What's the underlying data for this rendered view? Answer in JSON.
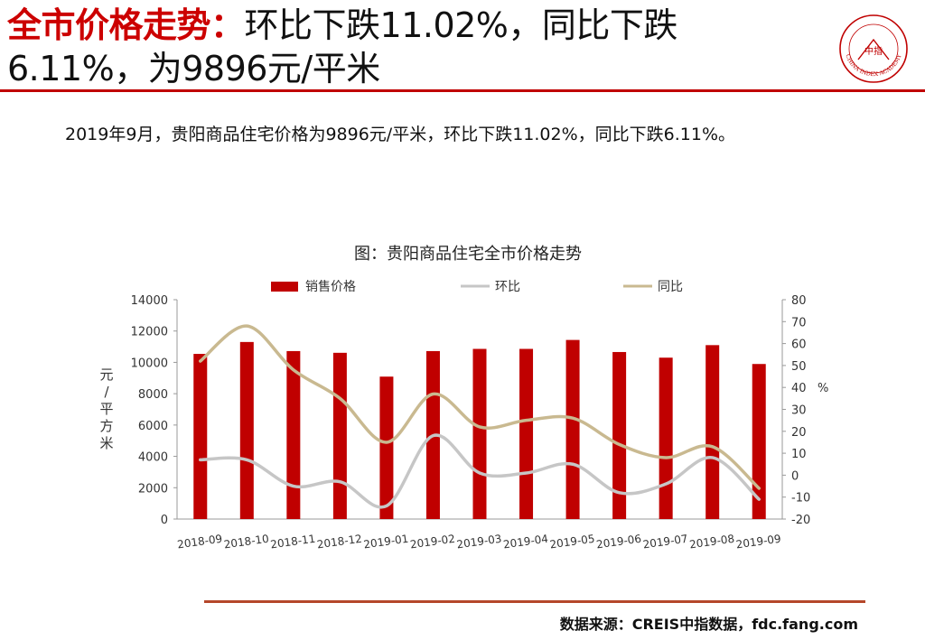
{
  "header": {
    "title_highlight": "全市价格走势：",
    "title_line1_rest": "环比下跌11.02%，同比下跌",
    "title_line2": "6.11%，为9896元/平米"
  },
  "logo": {
    "name": "CHINA INDEX ACADEMY",
    "center_text": "中指",
    "color": "#c00000"
  },
  "summary": "2019年9月，贵阳商品住宅价格为9896元/平米，环比下跌11.02%，同比下跌6.11%。",
  "chart_data": {
    "type": "bar",
    "title": "图：贵阳商品住宅全市价格走势",
    "categories": [
      "2018-09",
      "2018-10",
      "2018-11",
      "2018-12",
      "2019-01",
      "2019-02",
      "2019-03",
      "2019-04",
      "2019-05",
      "2019-06",
      "2019-07",
      "2019-08",
      "2019-09"
    ],
    "series": [
      {
        "name": "销售价格",
        "type": "bar",
        "axis": "left",
        "color": "#c00000",
        "values": [
          10540,
          11300,
          10720,
          10610,
          9090,
          10720,
          10860,
          10860,
          11430,
          10660,
          10300,
          11100,
          9896
        ]
      },
      {
        "name": "环比",
        "type": "line",
        "axis": "right",
        "color": "#c6c6c6",
        "values": [
          7,
          7,
          -5,
          -3,
          -14,
          18,
          1,
          1,
          5,
          -8,
          -4,
          8,
          -11
        ]
      },
      {
        "name": "同比",
        "type": "line",
        "axis": "right",
        "color": "#c9b990",
        "values": [
          52,
          68,
          48,
          35,
          15,
          37,
          22,
          25,
          26,
          14,
          8,
          13,
          -6
        ]
      }
    ],
    "left_axis": {
      "label": "元/平方米",
      "min": 0,
      "max": 14000,
      "step": 2000
    },
    "right_axis": {
      "label": "%",
      "min": -20,
      "max": 80,
      "step": 10
    },
    "legend_position": "top",
    "grid": false
  },
  "footer": {
    "source": "数据来源：CREIS中指数据，fdc.fang.com"
  }
}
